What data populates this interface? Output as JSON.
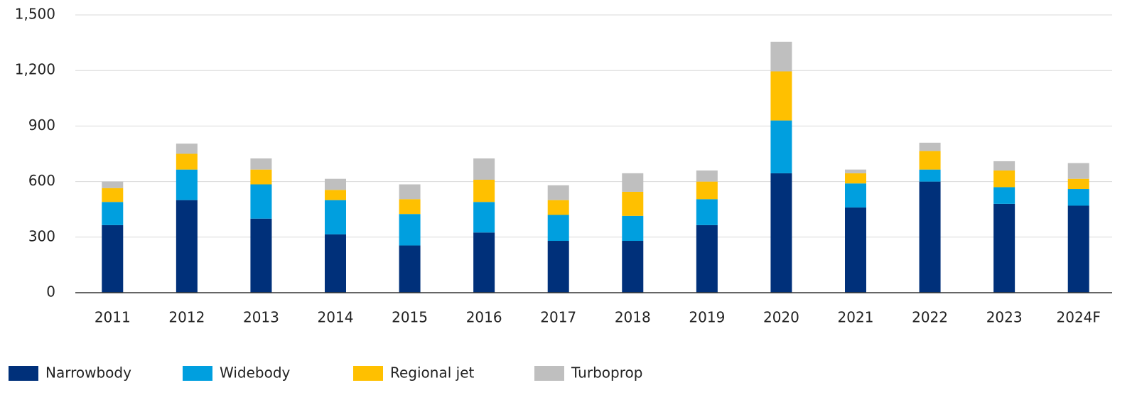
{
  "chart_data": {
    "type": "bar",
    "stacked": true,
    "categories": [
      "2011",
      "2012",
      "2013",
      "2014",
      "2015",
      "2016",
      "2017",
      "2018",
      "2019",
      "2020",
      "2021",
      "2022",
      "2023",
      "2024F"
    ],
    "series": [
      {
        "name": "Narrowbody",
        "color": "#00307a",
        "values": [
          365,
          500,
          400,
          315,
          255,
          325,
          280,
          280,
          365,
          645,
          460,
          600,
          480,
          470
        ]
      },
      {
        "name": "Widebody",
        "color": "#009fdf",
        "values": [
          125,
          165,
          185,
          185,
          170,
          165,
          140,
          135,
          140,
          285,
          130,
          65,
          90,
          90
        ]
      },
      {
        "name": "Regional jet",
        "color": "#ffc000",
        "values": [
          75,
          85,
          80,
          55,
          80,
          120,
          80,
          130,
          95,
          265,
          55,
          100,
          90,
          55
        ]
      },
      {
        "name": "Turboprop",
        "color": "#bfbfbf",
        "values": [
          35,
          55,
          60,
          60,
          80,
          115,
          80,
          100,
          60,
          160,
          20,
          45,
          50,
          85
        ]
      }
    ],
    "ylim": [
      0,
      1500
    ],
    "yticks": [
      0,
      300,
      600,
      900,
      {
        "value": 1200,
        "label": "1,200"
      },
      {
        "value": 1500,
        "label": "1,500"
      }
    ],
    "grid": true,
    "legend": "bottom-left"
  }
}
